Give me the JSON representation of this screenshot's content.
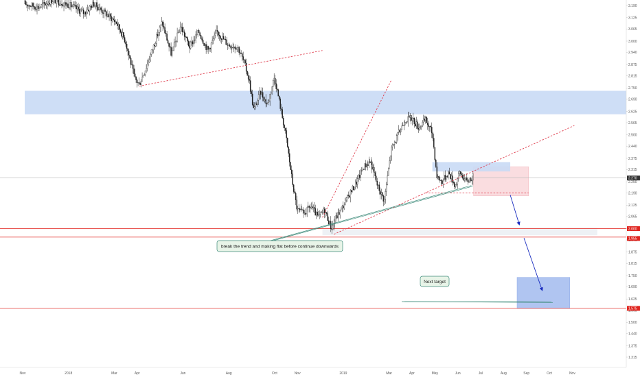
{
  "chart_data": {
    "type": "candlestick",
    "title": "",
    "xlabel": "",
    "ylabel": "",
    "grid": false,
    "x_ticks": [
      {
        "label": "Nov",
        "t": 0.0
      },
      {
        "label": "2018",
        "t": 2.0
      },
      {
        "label": "Mar",
        "t": 4.0
      },
      {
        "label": "Apr",
        "t": 5.0
      },
      {
        "label": "Jun",
        "t": 7.0
      },
      {
        "label": "Aug",
        "t": 9.0
      },
      {
        "label": "Oct",
        "t": 11.0
      },
      {
        "label": "Nov",
        "t": 12.0
      },
      {
        "label": "2019",
        "t": 14.0
      },
      {
        "label": "Mar",
        "t": 16.0
      },
      {
        "label": "Apr",
        "t": 17.0
      },
      {
        "label": "May",
        "t": 18.0
      },
      {
        "label": "Jun",
        "t": 19.0
      },
      {
        "label": "Jul",
        "t": 20.0
      },
      {
        "label": "Aug",
        "t": 21.0
      },
      {
        "label": "Sep",
        "t": 22.0
      },
      {
        "label": "Oct",
        "t": 23.0
      },
      {
        "label": "Nov",
        "t": 24.0
      }
    ],
    "y_ticks": [
      "3.190",
      "3.125",
      "3.065",
      "3.000",
      "2.940",
      "2.875",
      "2.815",
      "2.750",
      "2.690",
      "2.625",
      "2.565",
      "2.500",
      "2.440",
      "2.375",
      "2.315",
      "2.250",
      "2.190",
      "2.125",
      "2.065",
      "2.000",
      "1.940",
      "1.875",
      "1.815",
      "1.750",
      "1.690",
      "1.625",
      "1.565",
      "1.500",
      "1.440",
      "1.375",
      "1.315"
    ],
    "ylim": [
      1.27,
      3.21
    ],
    "price_path": [
      [
        0.0,
        3.2
      ],
      [
        0.6,
        3.18
      ],
      [
        1.2,
        3.22
      ],
      [
        2.0,
        3.19
      ],
      [
        2.6,
        3.15
      ],
      [
        3.0,
        3.2
      ],
      [
        3.5,
        3.15
      ],
      [
        4.0,
        3.1
      ],
      [
        4.4,
        3.0
      ],
      [
        4.8,
        2.8
      ],
      [
        5.0,
        2.77
      ],
      [
        5.3,
        2.86
      ],
      [
        5.7,
        3.0
      ],
      [
        6.0,
        3.1
      ],
      [
        6.4,
        2.93
      ],
      [
        6.8,
        3.08
      ],
      [
        7.2,
        2.97
      ],
      [
        7.6,
        3.05
      ],
      [
        8.0,
        2.95
      ],
      [
        8.4,
        3.05
      ],
      [
        8.9,
        2.98
      ],
      [
        9.3,
        2.97
      ],
      [
        9.6,
        2.88
      ],
      [
        9.8,
        2.79
      ],
      [
        10.0,
        2.63
      ],
      [
        10.3,
        2.73
      ],
      [
        10.6,
        2.66
      ],
      [
        10.9,
        2.81
      ],
      [
        11.1,
        2.69
      ],
      [
        11.4,
        2.5
      ],
      [
        11.7,
        2.24
      ],
      [
        11.9,
        2.1
      ],
      [
        12.2,
        2.08
      ],
      [
        12.5,
        2.12
      ],
      [
        12.8,
        2.06
      ],
      [
        13.1,
        2.1
      ],
      [
        13.4,
        2.0
      ],
      [
        13.6,
        2.06
      ],
      [
        13.9,
        2.12
      ],
      [
        14.2,
        2.19
      ],
      [
        14.5,
        2.25
      ],
      [
        14.8,
        2.33
      ],
      [
        15.1,
        2.36
      ],
      [
        15.4,
        2.23
      ],
      [
        15.7,
        2.15
      ],
      [
        16.0,
        2.42
      ],
      [
        16.3,
        2.5
      ],
      [
        16.6,
        2.58
      ],
      [
        16.9,
        2.59
      ],
      [
        17.2,
        2.54
      ],
      [
        17.5,
        2.58
      ],
      [
        17.8,
        2.51
      ],
      [
        18.0,
        2.28
      ],
      [
        18.2,
        2.25
      ],
      [
        18.5,
        2.3
      ],
      [
        18.8,
        2.23
      ],
      [
        19.0,
        2.3
      ],
      [
        19.3,
        2.25
      ],
      [
        19.6,
        2.28
      ]
    ],
    "current_price": "2.270",
    "price_levels": [
      {
        "label": "2.000",
        "value": 2.0
      },
      {
        "label": "1.955",
        "value": 1.955
      },
      {
        "label": "1.575",
        "value": 1.575
      }
    ],
    "zones": [
      {
        "kind": "resistance",
        "y_low": 2.61,
        "y_high": 2.735,
        "t_start": 0.0,
        "t_end": 27.5,
        "color": "#c9daf5"
      },
      {
        "kind": "support",
        "y_low": 1.965,
        "y_high": 2.005,
        "t_start": 13.0,
        "t_end": 25.0,
        "color": "#eceff4"
      },
      {
        "kind": "consolidation",
        "y_low": 2.175,
        "y_high": 2.33,
        "t_start": 19.6,
        "t_end": 22.0,
        "color": "#fadadd"
      },
      {
        "kind": "small-resistance",
        "y_low": 2.305,
        "y_high": 2.355,
        "t_start": 17.8,
        "t_end": 21.2,
        "color": "#c9daf5"
      },
      {
        "kind": "target",
        "y_low": 1.575,
        "y_high": 1.74,
        "t_start": 21.5,
        "t_end": 23.8,
        "color": "#a8bff0"
      }
    ],
    "trendlines": [
      {
        "t1": 5.0,
        "y1": 2.76,
        "t2": 13.0,
        "y2": 2.95
      },
      {
        "t1": 13.0,
        "y1": 2.06,
        "t2": 16.0,
        "y2": 2.79
      },
      {
        "t1": 13.5,
        "y1": 1.97,
        "t2": 24.0,
        "y2": 2.55
      },
      {
        "t1": 17.5,
        "y1": 2.19,
        "t2": 22.0,
        "y2": 2.19
      }
    ],
    "arrows": [
      {
        "t1": 21.2,
        "y1": 2.18,
        "t2": 21.6,
        "y2": 2.02
      },
      {
        "t1": 21.8,
        "y1": 1.95,
        "t2": 22.6,
        "y2": 1.67
      }
    ],
    "annotations": [
      {
        "text": "break the trend and making flat before continue downwards",
        "anchor_t": 19.5,
        "anchor_y": 2.23
      },
      {
        "text": "Next target",
        "anchor_t": 23.0,
        "anchor_y": 1.61
      }
    ],
    "colors": {
      "candles": "#1a1a1a",
      "level_line": "#e53935",
      "level_badge": "#e0251f",
      "trendline": "#e04050",
      "arrow": "#1a2dbf",
      "note_fill": "#e8f4e8",
      "note_stroke": "#3d8b7a",
      "current_badge": "#333333"
    }
  }
}
